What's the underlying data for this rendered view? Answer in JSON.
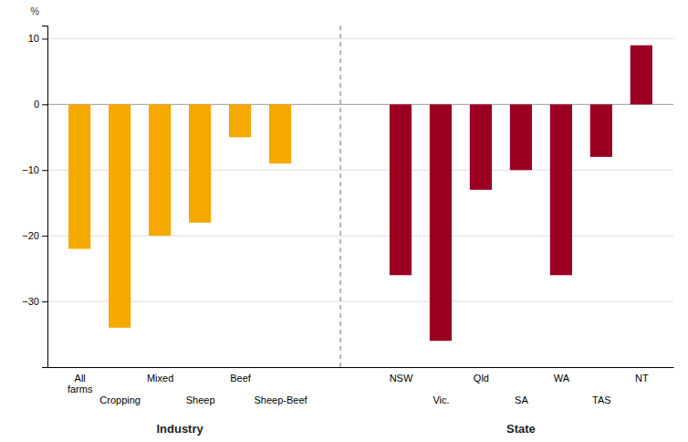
{
  "chart_data": {
    "type": "bar",
    "ylabel": "%",
    "categories": [
      "All\nfarms",
      "Cropping",
      "Mixed",
      "Sheep",
      "Beef",
      "Sheep-Beef",
      "NSW",
      "Vic.",
      "Qld",
      "SA",
      "WA",
      "TAS",
      "NT"
    ],
    "series": [
      {
        "name": "Industry",
        "color": "#F5A800",
        "values": [
          -22,
          -34,
          -20,
          -18,
          -5,
          -9,
          null,
          null,
          null,
          null,
          null,
          null,
          null
        ]
      },
      {
        "name": "State",
        "color": "#9B0020",
        "values": [
          null,
          null,
          null,
          null,
          null,
          null,
          -26,
          -36,
          -13,
          -10,
          -26,
          -8,
          9
        ]
      }
    ],
    "ylim": [
      -40,
      12
    ],
    "yticks": [
      10,
      0,
      {
        "value": -10,
        "label": "−10"
      },
      {
        "value": -20,
        "label": "−20"
      },
      {
        "value": -30,
        "label": "−30"
      }
    ],
    "grid": true
  }
}
